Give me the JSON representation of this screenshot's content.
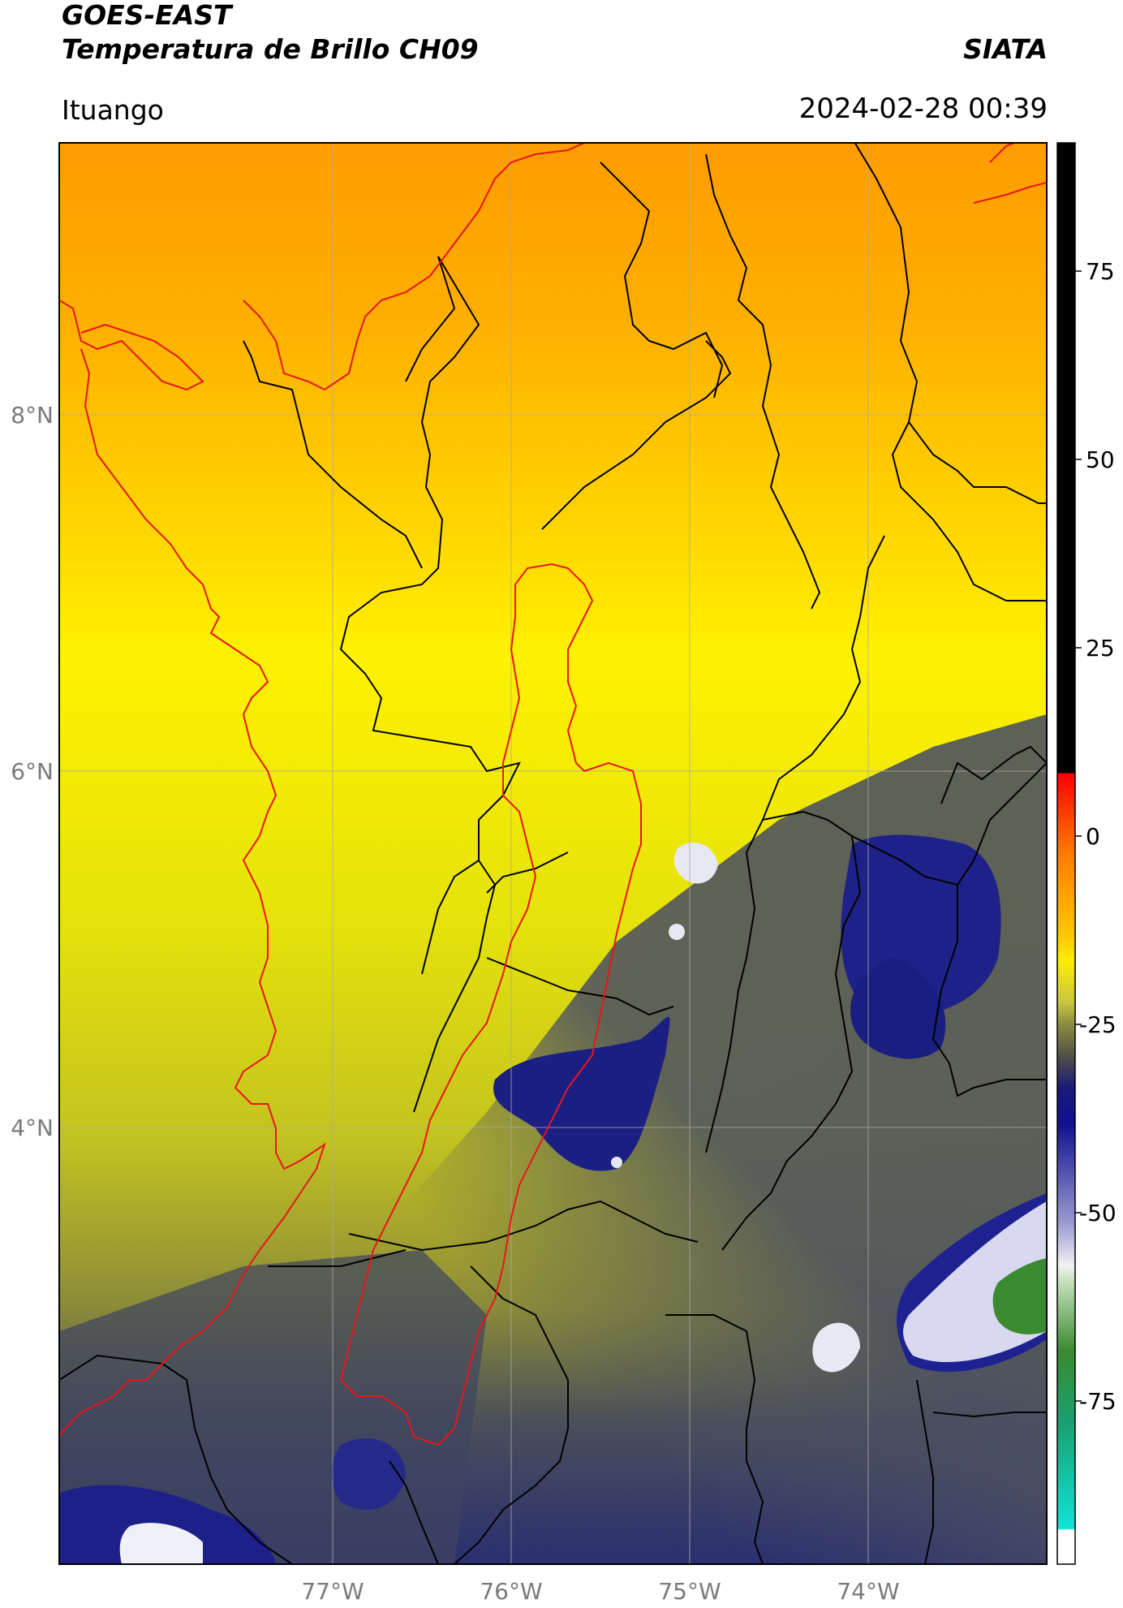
{
  "header": {
    "title_line1": "GOES-EAST",
    "title_line2": "Temperatura de Brillo CH09",
    "organization": "SIATA",
    "location": "Ituango",
    "timestamp": "2024-02-28 00:39"
  },
  "map": {
    "lat_labels": [
      "8°N",
      "6°N",
      "4°N"
    ],
    "lon_labels": [
      "77°W",
      "76°W",
      "75°W",
      "74°W"
    ],
    "gridline_color": "#aaaaaa",
    "border_color": "#000000",
    "highlight_region_color": "#e8161b"
  },
  "colorbar": {
    "tick_labels": [
      "75",
      "50",
      "25",
      "0",
      "-25",
      "-50",
      "-75"
    ],
    "colors": {
      "black_band": "#000000",
      "red": "#ff0000",
      "orange": "#ff9900",
      "yellow": "#ffee00",
      "olive": "#a8a830",
      "gray": "#555555",
      "navy": "#0a0a7e",
      "white": "#f4f4f4",
      "green": "#2f8a2a",
      "cyan": "#10dfd0"
    }
  }
}
